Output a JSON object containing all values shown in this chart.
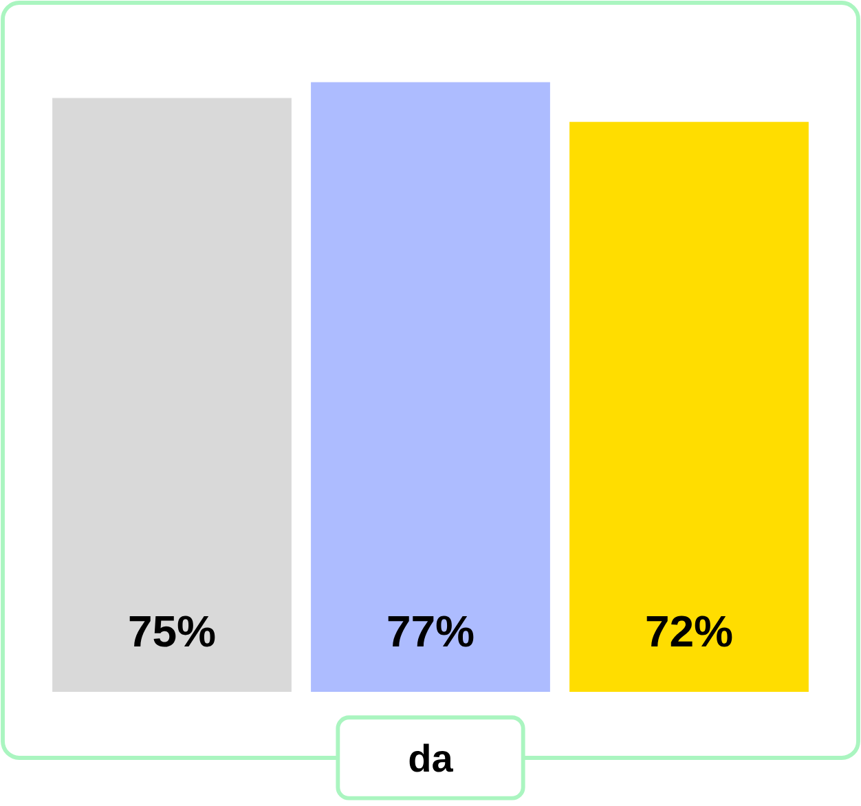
{
  "chart_data": {
    "type": "bar",
    "xlabel": "da",
    "categories": [
      null,
      null,
      null
    ],
    "values": [
      75,
      77,
      72
    ],
    "colors": [
      "#d9d9d9",
      "#adbcff",
      "#ffdd00"
    ],
    "value_labels": [
      "75%",
      "77%",
      "72%"
    ]
  }
}
